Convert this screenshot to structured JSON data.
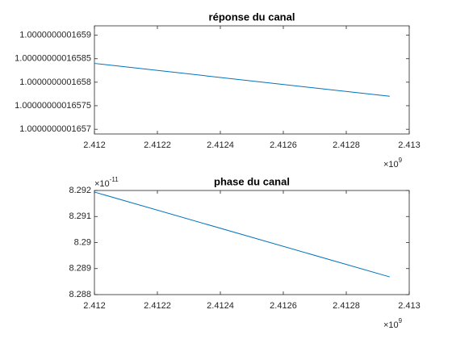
{
  "chart_data": [
    {
      "type": "line",
      "title": "réponse du canal",
      "x": [
        2.412,
        2.412938
      ],
      "series": [
        {
          "color": "#0072bd",
          "values": [
            1.00000000016584,
            1.00000000016577
          ]
        }
      ],
      "xlim": [
        2.412,
        2.413
      ],
      "xticks": [
        2.412,
        2.4122,
        2.4124,
        2.4126,
        2.4128,
        2.413
      ],
      "ylim": [
        1.00000000016569,
        1.00000000016592
      ],
      "yticks": [
        1.0000000001657,
        1.00000000016575,
        1.0000000001658,
        1.00000000016585,
        1.0000000001659
      ],
      "x_multiplier": {
        "base": "×10",
        "exponent": "9"
      }
    },
    {
      "type": "line",
      "title": "phase du canal",
      "x": [
        2.412,
        2.412938
      ],
      "series": [
        {
          "color": "#0072bd",
          "values": [
            8.29194,
            8.28868
          ]
        }
      ],
      "xlim": [
        2.412,
        2.413
      ],
      "xticks": [
        2.412,
        2.4122,
        2.4124,
        2.4126,
        2.4128,
        2.413
      ],
      "ylim": [
        8.288,
        8.292
      ],
      "yticks": [
        8.288,
        8.289,
        8.29,
        8.291,
        8.292
      ],
      "x_multiplier": {
        "base": "×10",
        "exponent": "9"
      },
      "y_multiplier": {
        "base": "×10",
        "exponent": "-11"
      }
    }
  ]
}
